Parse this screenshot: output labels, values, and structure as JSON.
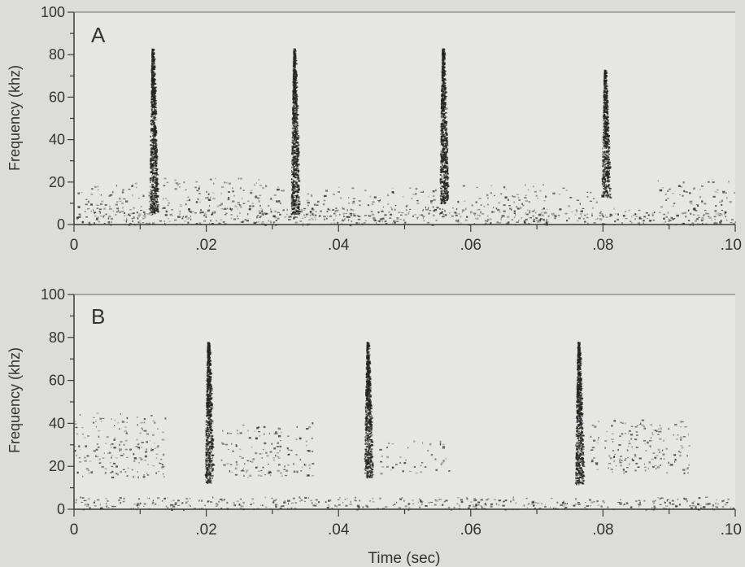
{
  "colors": {
    "background": "#dcdcd8",
    "plot_bg": "#e6e6e2",
    "mark": "#222222",
    "axis": "#3a3a3a"
  },
  "chart_data": [
    {
      "type": "heatmap",
      "panel_label": "A",
      "title": "",
      "xlabel": "",
      "ylabel": "Frequency (khz)",
      "xlim": [
        0,
        0.1
      ],
      "ylim": [
        0,
        100
      ],
      "x_tick_values": [
        0,
        0.02,
        0.04,
        0.06,
        0.08,
        0.1
      ],
      "x_tick_labels": [
        "0",
        ".02",
        ".04",
        ".06",
        ".08",
        ".10"
      ],
      "y_tick_values": [
        0,
        20,
        40,
        60,
        80,
        100
      ],
      "y_tick_labels": [
        "0",
        "20",
        "40",
        "60",
        "80",
        "100"
      ],
      "pulses": [
        {
          "time": 0.0118,
          "freq_low": 5,
          "freq_high": 83
        },
        {
          "time": 0.0332,
          "freq_low": 5,
          "freq_high": 83
        },
        {
          "time": 0.0557,
          "freq_low": 10,
          "freq_high": 83
        },
        {
          "time": 0.0802,
          "freq_low": 13,
          "freq_high": 73
        }
      ],
      "noise_patches": [
        {
          "t0": 0.0,
          "t1": 0.1,
          "f0": 0,
          "f1": 8,
          "density": 1.0
        },
        {
          "t0": 0.0,
          "t1": 0.012,
          "f0": 4,
          "f1": 20,
          "density": 0.5
        },
        {
          "t0": 0.013,
          "t1": 0.032,
          "f0": 4,
          "f1": 22,
          "density": 0.55
        },
        {
          "t0": 0.034,
          "t1": 0.055,
          "f0": 4,
          "f1": 18,
          "density": 0.45
        },
        {
          "t0": 0.057,
          "t1": 0.079,
          "f0": 4,
          "f1": 20,
          "density": 0.35
        },
        {
          "t0": 0.088,
          "t1": 0.1,
          "f0": 8,
          "f1": 22,
          "density": 0.4
        }
      ]
    },
    {
      "type": "heatmap",
      "panel_label": "B",
      "title": "",
      "xlabel": "Time (sec)",
      "ylabel": "Frequency (khz)",
      "xlim": [
        0,
        0.1
      ],
      "ylim": [
        0,
        100
      ],
      "x_tick_values": [
        0,
        0.02,
        0.04,
        0.06,
        0.08,
        0.1
      ],
      "x_tick_labels": [
        "0",
        ".02",
        ".04",
        ".06",
        ".08",
        ".10"
      ],
      "y_tick_values": [
        0,
        20,
        40,
        60,
        80,
        100
      ],
      "y_tick_labels": [
        "0",
        "20",
        "40",
        "60",
        "80",
        "100"
      ],
      "pulses": [
        {
          "time": 0.0202,
          "freq_low": 12,
          "freq_high": 78
        },
        {
          "time": 0.0443,
          "freq_low": 15,
          "freq_high": 78
        },
        {
          "time": 0.0762,
          "freq_low": 12,
          "freq_high": 78
        }
      ],
      "noise_patches": [
        {
          "t0": 0.0,
          "t1": 0.1,
          "f0": 0,
          "f1": 6,
          "density": 1.0
        },
        {
          "t0": 0.0,
          "t1": 0.014,
          "f0": 15,
          "f1": 45,
          "density": 0.55
        },
        {
          "t0": 0.022,
          "t1": 0.036,
          "f0": 15,
          "f1": 42,
          "density": 0.5
        },
        {
          "t0": 0.046,
          "t1": 0.057,
          "f0": 17,
          "f1": 32,
          "density": 0.35
        },
        {
          "t0": 0.078,
          "t1": 0.093,
          "f0": 17,
          "f1": 42,
          "density": 0.6
        }
      ]
    }
  ]
}
